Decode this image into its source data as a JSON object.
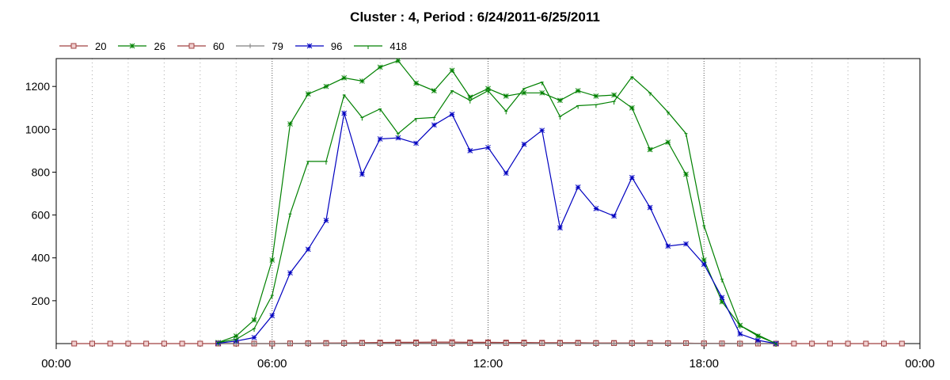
{
  "chart_data": {
    "type": "line",
    "title": "Cluster : 4, Period : 6/24/2011-6/25/2011",
    "xlabel": "",
    "ylabel": "",
    "x_unit": "hours",
    "xlim": [
      0,
      24
    ],
    "ylim": [
      0,
      1330
    ],
    "x_ticks": [
      0,
      6,
      12,
      18,
      24
    ],
    "x_tick_labels": [
      "00:00",
      "06:00",
      "12:00",
      "18:00",
      "00:00"
    ],
    "y_ticks": [
      200,
      400,
      600,
      800,
      1000,
      1200
    ],
    "y_tick_labels": [
      "200",
      "400",
      "600",
      "800",
      "1000",
      "1200"
    ],
    "grid": "vertical dotted",
    "legend_position": "top-left",
    "series": [
      {
        "name": "20",
        "color": "#a04040",
        "marker": "square",
        "x": [
          0.5,
          1.0,
          1.5,
          2.0,
          2.5,
          3.0,
          3.5,
          4.0,
          4.5,
          5.0,
          5.5,
          6.0,
          6.5,
          7.0,
          7.5,
          8.0,
          8.5,
          9.0,
          9.5,
          10.0,
          10.5,
          11.0,
          11.5,
          12.0,
          12.5,
          13.0,
          13.5,
          14.0,
          14.5,
          15.0,
          15.5,
          16.0,
          16.5,
          17.0,
          17.5,
          18.0,
          18.5,
          19.0,
          19.5,
          20.0,
          20.5,
          21.0,
          21.5,
          22.0,
          22.5,
          23.0,
          23.5
        ],
        "y": [
          0,
          0,
          0,
          0,
          0,
          0,
          0,
          0,
          0,
          0,
          0,
          0,
          1,
          2,
          3,
          3,
          4,
          5,
          6,
          6,
          7,
          7,
          6,
          6,
          5,
          5,
          4,
          4,
          4,
          3,
          3,
          3,
          3,
          2,
          2,
          1,
          0,
          0,
          0,
          0,
          0,
          0,
          0,
          0,
          0,
          0,
          0
        ]
      },
      {
        "name": "26",
        "color": "#008000",
        "marker": "star",
        "x": [
          4.5,
          5.0,
          5.5,
          6.0,
          6.5,
          7.0,
          7.5,
          8.0,
          8.5,
          9.0,
          9.5,
          10.0,
          10.5,
          11.0,
          11.5,
          12.0,
          12.5,
          13.0,
          13.5,
          14.0,
          14.5,
          15.0,
          15.5,
          16.0,
          16.5,
          17.0,
          17.5,
          18.0,
          18.5,
          19.0,
          19.5,
          20.0
        ],
        "y": [
          5,
          35,
          110,
          390,
          1025,
          1165,
          1200,
          1240,
          1225,
          1290,
          1320,
          1215,
          1180,
          1275,
          1150,
          1190,
          1155,
          1170,
          1170,
          1135,
          1180,
          1155,
          1160,
          1100,
          905,
          940,
          790,
          390,
          195,
          85,
          35,
          0
        ]
      },
      {
        "name": "60",
        "color": "#a04040",
        "marker": "square",
        "x": [
          4.5,
          5.0,
          5.5,
          6.0,
          6.5,
          7.0,
          7.5,
          8.0,
          8.5,
          9.0,
          9.5,
          10.0,
          10.5,
          11.0,
          11.5,
          12.0,
          12.5,
          13.0,
          13.5,
          14.0,
          14.5,
          15.0,
          15.5,
          16.0,
          16.5,
          17.0,
          17.5,
          18.0,
          18.5,
          19.0,
          19.5,
          20.0
        ],
        "y": [
          0,
          0,
          0,
          0,
          1,
          1,
          1,
          2,
          2,
          2,
          2,
          2,
          2,
          2,
          2,
          2,
          2,
          2,
          2,
          2,
          2,
          2,
          2,
          2,
          2,
          2,
          2,
          1,
          1,
          0,
          0,
          0
        ]
      },
      {
        "name": "79",
        "color": "#808080",
        "marker": "plus",
        "x": [
          4.5,
          5.0,
          5.5,
          6.0,
          6.5,
          7.0,
          7.5,
          8.0,
          8.5,
          9.0,
          9.5,
          10.0,
          10.5,
          11.0,
          11.5,
          12.0,
          12.5,
          13.0,
          13.5,
          14.0,
          14.5,
          15.0,
          15.5,
          16.0,
          16.5,
          17.0,
          17.5,
          18.0,
          18.5,
          19.0,
          19.5,
          20.0
        ],
        "y": [
          0,
          0,
          0,
          0,
          0,
          0,
          0,
          0,
          0,
          0,
          0,
          0,
          0,
          0,
          0,
          0,
          0,
          0,
          0,
          0,
          0,
          0,
          0,
          0,
          0,
          0,
          0,
          0,
          0,
          0,
          0,
          0
        ]
      },
      {
        "name": "96",
        "color": "#0000c0",
        "marker": "star",
        "x": [
          4.5,
          5.0,
          5.5,
          6.0,
          6.5,
          7.0,
          7.5,
          8.0,
          8.5,
          9.0,
          9.5,
          10.0,
          10.5,
          11.0,
          11.5,
          12.0,
          12.5,
          13.0,
          13.5,
          14.0,
          14.5,
          15.0,
          15.5,
          16.0,
          16.5,
          17.0,
          17.5,
          18.0,
          18.5,
          19.0,
          19.5,
          20.0
        ],
        "y": [
          2,
          12,
          28,
          130,
          330,
          440,
          575,
          1075,
          790,
          955,
          960,
          935,
          1020,
          1070,
          900,
          915,
          795,
          930,
          995,
          540,
          730,
          630,
          595,
          775,
          635,
          455,
          465,
          370,
          215,
          45,
          15,
          0
        ]
      },
      {
        "name": "418",
        "color": "#008000",
        "marker": "tick",
        "x": [
          4.5,
          5.0,
          5.5,
          6.0,
          6.5,
          7.0,
          7.5,
          8.0,
          8.5,
          9.0,
          9.5,
          10.0,
          10.5,
          11.0,
          11.5,
          12.0,
          12.5,
          13.0,
          13.5,
          14.0,
          14.5,
          15.0,
          15.5,
          16.0,
          16.5,
          17.0,
          17.5,
          18.0,
          18.5,
          19.0,
          19.5,
          20.0
        ],
        "y": [
          5,
          20,
          70,
          225,
          605,
          850,
          850,
          1160,
          1055,
          1095,
          980,
          1050,
          1055,
          1180,
          1135,
          1180,
          1085,
          1190,
          1220,
          1060,
          1110,
          1115,
          1130,
          1245,
          1170,
          1080,
          980,
          550,
          300,
          85,
          40,
          0
        ]
      }
    ]
  }
}
